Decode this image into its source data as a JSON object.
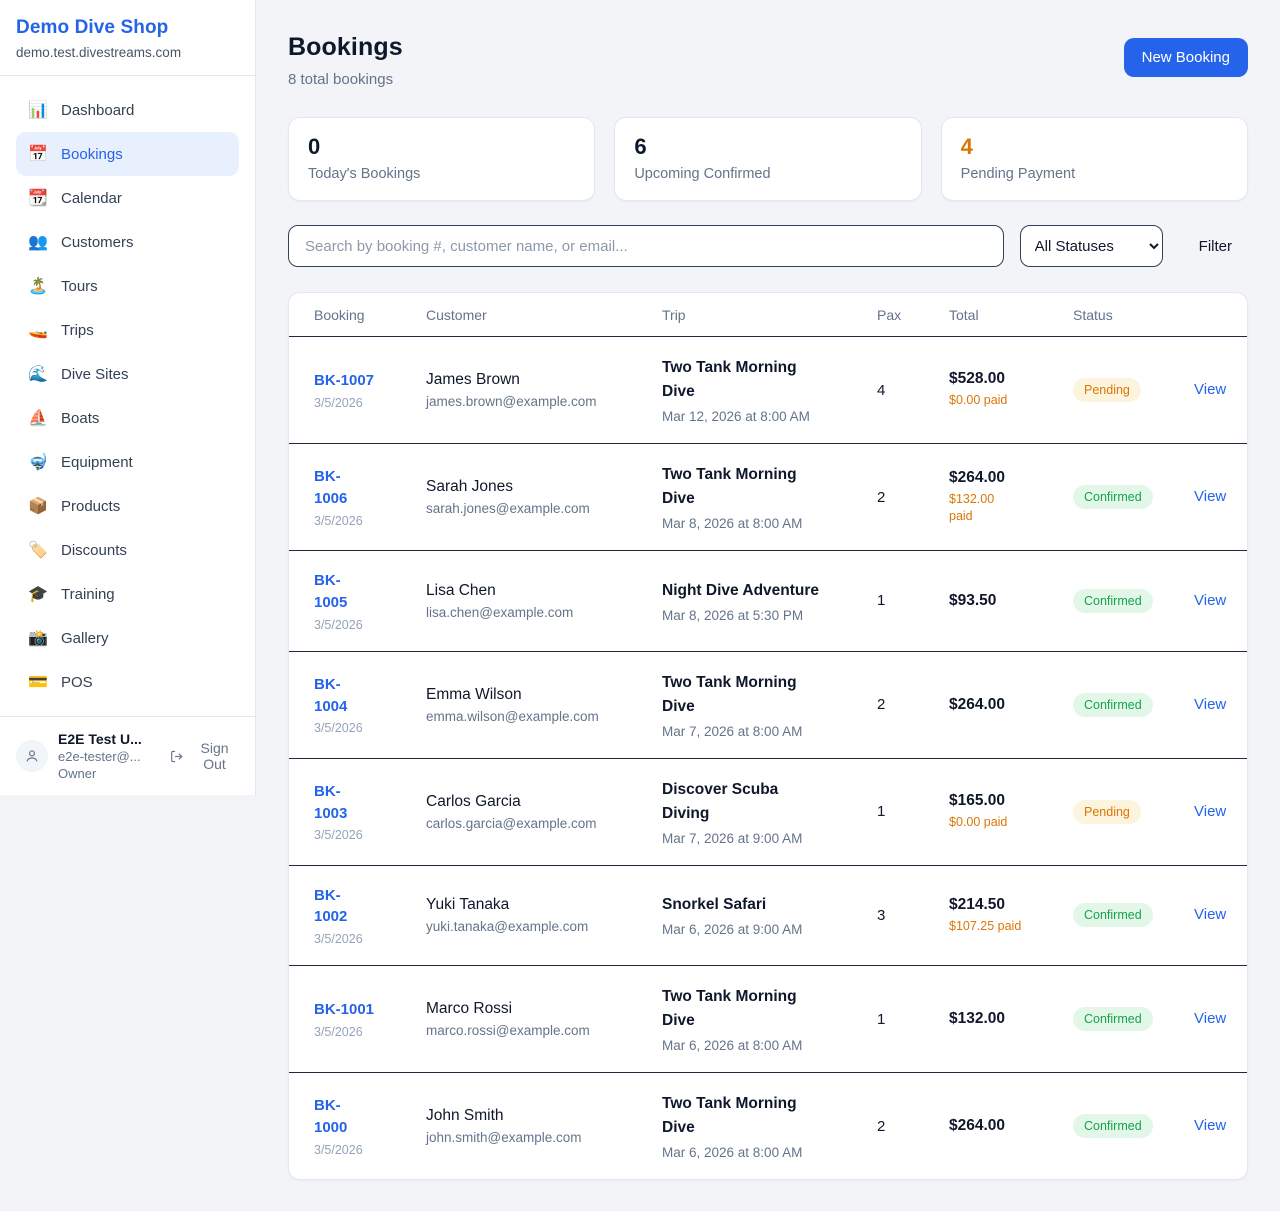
{
  "sidebar": {
    "brand": {
      "name": "Demo Dive Shop",
      "domain": "demo.test.divestreams.com"
    },
    "nav": [
      {
        "label": "Dashboard",
        "icon": "📊",
        "icon_name": "bar-chart-icon",
        "active": false
      },
      {
        "label": "Bookings",
        "icon": "📅",
        "icon_name": "calendar-icon",
        "active": true
      },
      {
        "label": "Calendar",
        "icon": "📆",
        "icon_name": "tear-off-calendar-icon",
        "active": false
      },
      {
        "label": "Customers",
        "icon": "👥",
        "icon_name": "people-icon",
        "active": false
      },
      {
        "label": "Tours",
        "icon": "🏝️",
        "icon_name": "island-icon",
        "active": false
      },
      {
        "label": "Trips",
        "icon": "🚤",
        "icon_name": "speedboat-icon",
        "active": false
      },
      {
        "label": "Dive Sites",
        "icon": "🌊",
        "icon_name": "wave-icon",
        "active": false
      },
      {
        "label": "Boats",
        "icon": "⛵",
        "icon_name": "sailboat-icon",
        "active": false
      },
      {
        "label": "Equipment",
        "icon": "🤿",
        "icon_name": "diving-mask-icon",
        "active": false
      },
      {
        "label": "Products",
        "icon": "📦",
        "icon_name": "package-icon",
        "active": false
      },
      {
        "label": "Discounts",
        "icon": "🏷️",
        "icon_name": "tag-icon",
        "active": false
      },
      {
        "label": "Training",
        "icon": "🎓",
        "icon_name": "graduation-cap-icon",
        "active": false
      },
      {
        "label": "Gallery",
        "icon": "📸",
        "icon_name": "camera-icon",
        "active": false
      },
      {
        "label": "POS",
        "icon": "💳",
        "icon_name": "credit-card-icon",
        "active": false
      }
    ],
    "user": {
      "name": "E2E Test U...",
      "email": "e2e-tester@...",
      "role": "Owner",
      "sign_out_label": "Sign Out"
    }
  },
  "header": {
    "title": "Bookings",
    "subtitle": "8 total bookings",
    "new_booking_label": "New Booking"
  },
  "stats": [
    {
      "value": "0",
      "label": "Today's Bookings",
      "value_color": "#0f172a"
    },
    {
      "value": "6",
      "label": "Upcoming Confirmed",
      "value_color": "#0f172a"
    },
    {
      "value": "4",
      "label": "Pending Payment",
      "value_color": "#d97706"
    }
  ],
  "controls": {
    "search_placeholder": "Search by booking #, customer name, or email...",
    "status_filter_value": "All Statuses",
    "filter_label": "Filter"
  },
  "table": {
    "columns": [
      "Booking",
      "Customer",
      "Trip",
      "Pax",
      "Total",
      "Status"
    ],
    "rows": [
      {
        "id": "BK-1007",
        "id_wrap": false,
        "date": "3/5/2026",
        "customer": "James Brown",
        "email": "james.brown@example.com",
        "trip": "Two Tank Morning Dive",
        "trip_lines": [
          "Two Tank Morning",
          "Dive"
        ],
        "trip_when": "Mar 12, 2026 at 8:00 AM",
        "pax": "4",
        "total": "$528.00",
        "paid": "$0.00 paid",
        "paid_wrap": false,
        "status": "Pending",
        "view_label": "View"
      },
      {
        "id": "BK-1006",
        "id_wrap": true,
        "date": "3/5/2026",
        "customer": "Sarah Jones",
        "email": "sarah.jones@example.com",
        "trip": "Two Tank Morning Dive",
        "trip_lines": [
          "Two Tank Morning",
          "Dive"
        ],
        "trip_when": "Mar 8, 2026 at 8:00 AM",
        "pax": "2",
        "total": "$264.00",
        "paid": "$132.00 paid",
        "paid_wrap": true,
        "status": "Confirmed",
        "view_label": "View"
      },
      {
        "id": "BK-1005",
        "id_wrap": true,
        "date": "3/5/2026",
        "customer": "Lisa Chen",
        "email": "lisa.chen@example.com",
        "trip": "Night Dive Adventure",
        "trip_lines": [
          "Night Dive Adventure"
        ],
        "trip_when": "Mar 8, 2026 at 5:30 PM",
        "pax": "1",
        "total": "$93.50",
        "paid": null,
        "paid_wrap": false,
        "status": "Confirmed",
        "view_label": "View"
      },
      {
        "id": "BK-1004",
        "id_wrap": true,
        "date": "3/5/2026",
        "customer": "Emma Wilson",
        "email": "emma.wilson@example.com",
        "trip": "Two Tank Morning Dive",
        "trip_lines": [
          "Two Tank Morning",
          "Dive"
        ],
        "trip_when": "Mar 7, 2026 at 8:00 AM",
        "pax": "2",
        "total": "$264.00",
        "paid": null,
        "paid_wrap": false,
        "status": "Confirmed",
        "view_label": "View"
      },
      {
        "id": "BK-1003",
        "id_wrap": true,
        "date": "3/5/2026",
        "customer": "Carlos Garcia",
        "email": "carlos.garcia@example.com",
        "trip": "Discover Scuba Diving",
        "trip_lines": [
          "Discover Scuba",
          "Diving"
        ],
        "trip_when": "Mar 7, 2026 at 9:00 AM",
        "pax": "1",
        "total": "$165.00",
        "paid": "$0.00 paid",
        "paid_wrap": false,
        "status": "Pending",
        "view_label": "View"
      },
      {
        "id": "BK-1002",
        "id_wrap": true,
        "date": "3/5/2026",
        "customer": "Yuki Tanaka",
        "email": "yuki.tanaka@example.com",
        "trip": "Snorkel Safari",
        "trip_lines": [
          "Snorkel Safari"
        ],
        "trip_when": "Mar 6, 2026 at 9:00 AM",
        "pax": "3",
        "total": "$214.50",
        "paid": "$107.25 paid",
        "paid_wrap": false,
        "status": "Confirmed",
        "view_label": "View"
      },
      {
        "id": "BK-1001",
        "id_wrap": false,
        "date": "3/5/2026",
        "customer": "Marco Rossi",
        "email": "marco.rossi@example.com",
        "trip": "Two Tank Morning Dive",
        "trip_lines": [
          "Two Tank Morning",
          "Dive"
        ],
        "trip_when": "Mar 6, 2026 at 8:00 AM",
        "pax": "1",
        "total": "$132.00",
        "paid": null,
        "paid_wrap": false,
        "status": "Confirmed",
        "view_label": "View"
      },
      {
        "id": "BK-1000",
        "id_wrap": true,
        "date": "3/5/2026",
        "customer": "John Smith",
        "email": "john.smith@example.com",
        "trip": "Two Tank Morning Dive",
        "trip_lines": [
          "Two Tank Morning",
          "Dive"
        ],
        "trip_when": "Mar 6, 2026 at 8:00 AM",
        "pax": "2",
        "total": "$264.00",
        "paid": null,
        "paid_wrap": false,
        "status": "Confirmed",
        "view_label": "View"
      }
    ]
  },
  "colors": {
    "accent_blue": "#2563eb",
    "orange": "#d97706",
    "pending_badge_bg": "#fdf4dd",
    "pending_badge_fg": "#d97706",
    "confirmed_badge_bg": "#e3f7e9",
    "confirmed_badge_fg": "#16a34a",
    "page_bg": "#f2f4f8",
    "row_divider": "#1e293b",
    "card_border": "#e2e8f0"
  }
}
